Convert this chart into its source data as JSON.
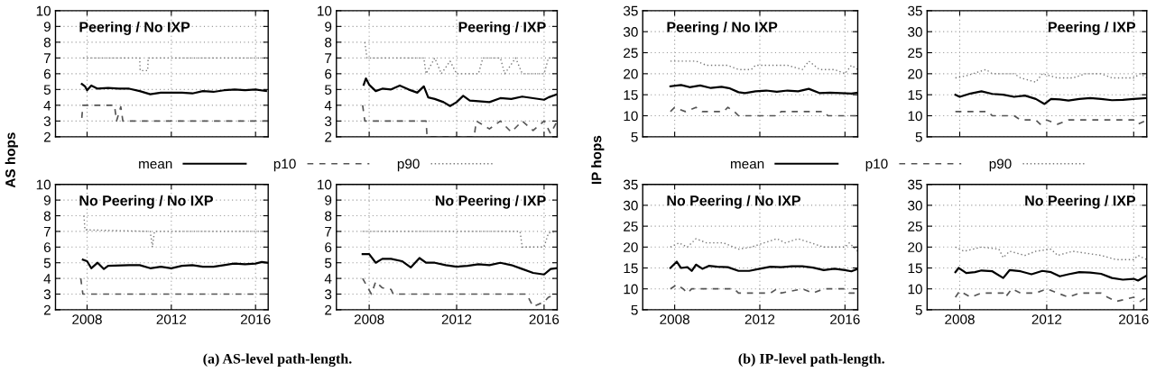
{
  "chart_data": [
    {
      "type": "line",
      "title": "Peering / No IXP",
      "ylabel": "AS hops",
      "legend": "bottom",
      "grid": true,
      "tick_labels": "y",
      "xlim": [
        2006.5,
        2016.6
      ],
      "xticks": [
        2008,
        2012,
        2016
      ],
      "ylim": [
        2,
        10
      ],
      "yticks": [
        2,
        3,
        4,
        5,
        6,
        7,
        8,
        9,
        10
      ],
      "series": [
        {
          "name": "mean",
          "color": "#000000",
          "line_style": "solid",
          "x": [
            2007.75,
            2007.9,
            2008.0,
            2008.2,
            2008.5,
            2009,
            2009.5,
            2010,
            2010.5,
            2011,
            2011.5,
            2012,
            2012.5,
            2013,
            2013.5,
            2014,
            2014.5,
            2015,
            2015.5,
            2016,
            2016.5
          ],
          "values": [
            5.35,
            5.2,
            4.95,
            5.25,
            5.05,
            5.1,
            5.05,
            5.05,
            4.9,
            4.7,
            4.8,
            4.8,
            4.8,
            4.75,
            4.9,
            4.85,
            4.95,
            5.0,
            4.95,
            5.0,
            4.9
          ]
        },
        {
          "name": "p10",
          "color": "#555555",
          "line_style": "dashed",
          "x": [
            2007.75,
            2007.8,
            2009.3,
            2009.4,
            2009.6,
            2009.7,
            2016.6
          ],
          "values": [
            3.2,
            4,
            4,
            3,
            3.9,
            3,
            3
          ]
        },
        {
          "name": "p90",
          "color": "#777777",
          "line_style": "dotted",
          "x": [
            2007.8,
            2010.5,
            2010.52,
            2010.88,
            2010.9,
            2016.6
          ],
          "values": [
            7,
            7,
            6.2,
            6.2,
            7,
            7
          ]
        }
      ]
    },
    {
      "type": "line",
      "title": "Peering / IXP",
      "grid": true,
      "tick_labels": "y",
      "xlim": [
        2006.5,
        2016.6
      ],
      "xticks": [
        2008,
        2012,
        2016
      ],
      "ylim": [
        2,
        10
      ],
      "yticks": [
        2,
        3,
        4,
        5,
        6,
        7,
        8,
        9,
        10
      ],
      "series": [
        {
          "color": "#000000",
          "line_style": "solid",
          "x": [
            2007.75,
            2007.85,
            2008,
            2008.3,
            2008.6,
            2009,
            2009.4,
            2009.8,
            2010.2,
            2010.5,
            2010.7,
            2011,
            2011.4,
            2011.7,
            2012,
            2012.3,
            2012.6,
            2013,
            2013.5,
            2014,
            2014.5,
            2015,
            2015.5,
            2016,
            2016.2,
            2016.6
          ],
          "values": [
            5.3,
            5.7,
            5.3,
            4.9,
            5.05,
            5.0,
            5.25,
            5.0,
            4.8,
            5.2,
            4.5,
            4.4,
            4.2,
            3.95,
            4.2,
            4.6,
            4.3,
            4.25,
            4.2,
            4.45,
            4.4,
            4.55,
            4.45,
            4.35,
            4.5,
            4.7
          ]
        },
        {
          "color": "#555555",
          "line_style": "dashed",
          "x": [
            2007.7,
            2007.8,
            2010.6,
            2010.65,
            2012.8,
            2012.9,
            2013.5,
            2014,
            2014.5,
            2015,
            2015.5,
            2016,
            2016.3,
            2016.6
          ],
          "values": [
            4,
            3,
            3,
            2,
            2,
            3,
            2.5,
            3,
            2.3,
            3,
            2.4,
            3,
            2.2,
            3
          ]
        },
        {
          "color": "#777777",
          "line_style": "dotted",
          "x": [
            2007.8,
            2007.9,
            2010.5,
            2010.6,
            2011,
            2011.3,
            2011.7,
            2012,
            2013,
            2013.2,
            2014,
            2014.2,
            2014.7,
            2015,
            2016,
            2016.2,
            2016.6
          ],
          "values": [
            8,
            7,
            7,
            6,
            7,
            6,
            6.8,
            6,
            6,
            7,
            7,
            6,
            7,
            6,
            6,
            7,
            7
          ]
        }
      ]
    },
    {
      "type": "line",
      "title": "No Peering / No IXP",
      "grid": true,
      "annotations": [
        "(a) AS-level path-length."
      ],
      "xlim": [
        2006.5,
        2016.6
      ],
      "xticks": [
        2008,
        2012,
        2016
      ],
      "ylim": [
        2,
        10
      ],
      "yticks": [
        2,
        3,
        4,
        5,
        6,
        7,
        8,
        9,
        10
      ],
      "series": [
        {
          "color": "#000000",
          "line_style": "solid",
          "x": [
            2007.8,
            2008,
            2008.2,
            2008.5,
            2008.8,
            2009,
            2010,
            2010.5,
            2011,
            2011.5,
            2012,
            2012.5,
            2013,
            2013.5,
            2014,
            2014.5,
            2015,
            2015.5,
            2016,
            2016.3,
            2016.6
          ],
          "values": [
            5.2,
            5.1,
            4.65,
            5.0,
            4.6,
            4.8,
            4.85,
            4.85,
            4.65,
            4.75,
            4.65,
            4.8,
            4.85,
            4.75,
            4.75,
            4.85,
            4.95,
            4.9,
            4.95,
            5.05,
            5.0
          ]
        },
        {
          "color": "#555555",
          "line_style": "dashed",
          "x": [
            2007.7,
            2007.8,
            2016.6
          ],
          "values": [
            4,
            3,
            3
          ]
        },
        {
          "color": "#777777",
          "line_style": "dotted",
          "x": [
            2007.85,
            2007.9,
            2011,
            2011.1,
            2011.2,
            2016.6
          ],
          "values": [
            8,
            7.1,
            7,
            6,
            7,
            7
          ]
        }
      ]
    },
    {
      "type": "line",
      "title": "No Peering / IXP",
      "grid": true,
      "xlim": [
        2006.5,
        2016.6
      ],
      "xticks": [
        2008,
        2012,
        2016
      ],
      "ylim": [
        2,
        10
      ],
      "yticks": [
        2,
        3,
        4,
        5,
        6,
        7,
        8,
        9,
        10
      ],
      "series": [
        {
          "color": "#000000",
          "line_style": "solid",
          "x": [
            2007.7,
            2008,
            2008.3,
            2008.6,
            2009,
            2009.5,
            2009.9,
            2010.3,
            2010.6,
            2011,
            2011.5,
            2012,
            2012.5,
            2013,
            2013.5,
            2014,
            2014.5,
            2015,
            2015.5,
            2016,
            2016.3,
            2016.6
          ],
          "values": [
            5.55,
            5.55,
            5.0,
            5.25,
            5.25,
            5.1,
            4.7,
            5.3,
            5.0,
            5.0,
            4.85,
            4.75,
            4.8,
            4.9,
            4.85,
            5.0,
            4.85,
            4.6,
            4.35,
            4.25,
            4.6,
            4.65
          ]
        },
        {
          "color": "#555555",
          "line_style": "dashed",
          "x": [
            2007.7,
            2008.1,
            2008.3,
            2008.6,
            2009,
            2009.1,
            2015.2,
            2015.5,
            2016,
            2016.2,
            2016.6
          ],
          "values": [
            4,
            3,
            3.8,
            3.4,
            3.3,
            3,
            3,
            2.2,
            2.5,
            2.8,
            3
          ]
        },
        {
          "color": "#777777",
          "line_style": "dotted",
          "x": [
            2007.7,
            2014.9,
            2015,
            2016,
            2016.2,
            2016.6
          ],
          "values": [
            7,
            7,
            6,
            6,
            6.9,
            7
          ]
        }
      ]
    },
    {
      "type": "line",
      "title": "Peering / No IXP",
      "ylabel": "IP hops",
      "legend": "bottom",
      "grid": true,
      "tick_labels": "y",
      "xlim": [
        2006.5,
        2016.6
      ],
      "xticks": [
        2008,
        2012,
        2016
      ],
      "ylim": [
        5,
        35
      ],
      "yticks": [
        5,
        10,
        15,
        20,
        25,
        30,
        35
      ],
      "series": [
        {
          "name": "mean",
          "color": "#000000",
          "line_style": "solid",
          "x": [
            2007.8,
            2008.3,
            2008.7,
            2009.2,
            2009.7,
            2010.2,
            2010.6,
            2011,
            2011.3,
            2011.8,
            2012.3,
            2012.8,
            2013.3,
            2013.8,
            2014.3,
            2014.8,
            2015.3,
            2015.8,
            2016.3,
            2016.6
          ],
          "values": [
            17,
            17.3,
            16.8,
            17.2,
            16.6,
            16.9,
            16.5,
            15.6,
            15.4,
            15.8,
            16.0,
            15.7,
            16.0,
            15.8,
            16.4,
            15.4,
            15.5,
            15.4,
            15.3,
            15.5
          ]
        },
        {
          "name": "p10",
          "color": "#555555",
          "line_style": "dashed",
          "x": [
            2007.8,
            2008,
            2008.5,
            2009,
            2009.3,
            2010.3,
            2010.5,
            2010.8,
            2011,
            2012.8,
            2013,
            2015,
            2015.2,
            2016.6
          ],
          "values": [
            11,
            12,
            11,
            12,
            11,
            11,
            12,
            11,
            10,
            10,
            11,
            11,
            10,
            10
          ]
        },
        {
          "name": "p90",
          "color": "#777777",
          "line_style": "dotted",
          "x": [
            2007.8,
            2009,
            2009.5,
            2010.5,
            2011,
            2011.6,
            2011.8,
            2012.8,
            2013.3,
            2014,
            2014.3,
            2014.8,
            2015.5,
            2016,
            2016.3,
            2016.6
          ],
          "values": [
            23,
            23,
            22,
            22,
            21,
            21,
            22,
            22,
            22,
            21,
            23,
            21,
            21,
            20,
            22,
            21
          ]
        }
      ]
    },
    {
      "type": "line",
      "title": "Peering / IXP",
      "grid": true,
      "tick_labels": "y",
      "xlim": [
        2006.5,
        2016.6
      ],
      "xticks": [
        2008,
        2012,
        2016
      ],
      "ylim": [
        5,
        35
      ],
      "yticks": [
        5,
        10,
        15,
        20,
        25,
        30,
        35
      ],
      "series": [
        {
          "color": "#000000",
          "line_style": "solid",
          "x": [
            2007.8,
            2008,
            2008.5,
            2009,
            2009.5,
            2010,
            2010.5,
            2011,
            2011.5,
            2011.9,
            2012.2,
            2012.6,
            2013,
            2013.5,
            2014,
            2014.5,
            2015,
            2015.5,
            2016,
            2016.6
          ],
          "values": [
            15,
            14.5,
            15.3,
            15.8,
            15.2,
            15.0,
            14.5,
            14.8,
            14.0,
            12.8,
            14.0,
            13.9,
            13.6,
            14.0,
            14.2,
            14.0,
            13.7,
            13.8,
            14.0,
            14.2
          ]
        },
        {
          "color": "#555555",
          "line_style": "dashed",
          "x": [
            2007.8,
            2009.3,
            2009.5,
            2010.5,
            2010.8,
            2011.5,
            2011.7,
            2012,
            2012.5,
            2013,
            2016,
            2016.2,
            2016.6
          ],
          "values": [
            11,
            11,
            10,
            10,
            9,
            9,
            8,
            9,
            8,
            9,
            9,
            8,
            9
          ]
        },
        {
          "color": "#777777",
          "line_style": "dotted",
          "x": [
            2007.8,
            2008.3,
            2009.2,
            2009.5,
            2010.5,
            2010.8,
            2011.5,
            2011.8,
            2012.5,
            2013.2,
            2013.8,
            2014.5,
            2015,
            2016,
            2016.3,
            2016.6
          ],
          "values": [
            19,
            19.5,
            21,
            20,
            20,
            19,
            18,
            20,
            19,
            19,
            20,
            20,
            19,
            19,
            20,
            19
          ]
        }
      ]
    },
    {
      "type": "line",
      "title": "No Peering / No IXP",
      "grid": true,
      "annotations": [
        "(b) IP-level path-length."
      ],
      "xlim": [
        2006.5,
        2016.6
      ],
      "xticks": [
        2008,
        2012,
        2016
      ],
      "ylim": [
        5,
        35
      ],
      "yticks": [
        5,
        10,
        15,
        20,
        25,
        30,
        35
      ],
      "series": [
        {
          "color": "#000000",
          "line_style": "solid",
          "x": [
            2007.8,
            2008.1,
            2008.3,
            2008.6,
            2008.8,
            2009,
            2009.3,
            2009.6,
            2010,
            2010.5,
            2011,
            2011.5,
            2012,
            2012.5,
            2013,
            2013.5,
            2014,
            2014.5,
            2015,
            2015.5,
            2016,
            2016.3,
            2016.6
          ],
          "values": [
            15,
            16.5,
            15,
            15.2,
            14.3,
            15.8,
            14.8,
            15.5,
            15.3,
            15.2,
            14.3,
            14.3,
            14.8,
            15.3,
            15.2,
            15.4,
            15.4,
            15.1,
            14.5,
            14.8,
            14.5,
            14.2,
            14.8
          ]
        },
        {
          "color": "#555555",
          "line_style": "dashed",
          "x": [
            2007.8,
            2008.1,
            2008.4,
            2008.6,
            2008.8,
            2010.8,
            2011,
            2012.5,
            2012.8,
            2013,
            2014,
            2014.5,
            2015,
            2016,
            2016.2,
            2016.6
          ],
          "values": [
            10,
            11,
            10,
            9,
            10,
            10,
            9,
            9,
            10,
            9,
            10,
            9,
            10,
            10,
            9,
            9
          ]
        },
        {
          "color": "#777777",
          "line_style": "dotted",
          "x": [
            2007.8,
            2008.2,
            2008.6,
            2009,
            2009.5,
            2010.3,
            2011,
            2011.6,
            2012.2,
            2012.8,
            2013.2,
            2013.8,
            2014.4,
            2015,
            2016,
            2016.2,
            2016.6
          ],
          "values": [
            20,
            21,
            20,
            22,
            21,
            21,
            19.5,
            20,
            21,
            22,
            21,
            22,
            21,
            20,
            20,
            21,
            19
          ]
        }
      ]
    },
    {
      "type": "line",
      "title": "No Peering / IXP",
      "grid": true,
      "xlim": [
        2006.5,
        2016.6
      ],
      "xticks": [
        2008,
        2012,
        2016
      ],
      "ylim": [
        5,
        35
      ],
      "yticks": [
        5,
        10,
        15,
        20,
        25,
        30,
        35
      ],
      "series": [
        {
          "color": "#000000",
          "line_style": "solid",
          "x": [
            2007.8,
            2007.95,
            2008.1,
            2008.3,
            2008.7,
            2009,
            2009.5,
            2010,
            2010.3,
            2010.8,
            2011.3,
            2011.8,
            2012.2,
            2012.6,
            2013,
            2013.5,
            2014,
            2014.5,
            2015,
            2015.5,
            2016,
            2016.2,
            2016.6
          ],
          "values": [
            14,
            15,
            14.5,
            13.8,
            14.0,
            14.4,
            14.2,
            12.6,
            14.5,
            14.2,
            13.5,
            14.3,
            14.0,
            13.0,
            13.5,
            14.0,
            13.9,
            13.6,
            12.6,
            12.2,
            12.4,
            12.0,
            13.2
          ]
        },
        {
          "color": "#555555",
          "line_style": "dashed",
          "x": [
            2007.8,
            2008,
            2008.5,
            2009,
            2010,
            2010.1,
            2010.4,
            2010.8,
            2011.5,
            2012,
            2012.5,
            2013,
            2013.5,
            2014.5,
            2014.8,
            2015.2,
            2016,
            2016.3,
            2016.6
          ],
          "values": [
            8,
            9.5,
            8,
            9,
            9,
            8,
            10,
            9,
            9,
            10,
            9,
            8,
            9,
            9,
            8,
            7,
            8,
            7,
            8
          ]
        },
        {
          "color": "#777777",
          "line_style": "dotted",
          "x": [
            2007.8,
            2008.2,
            2009,
            2009.8,
            2010,
            2010.3,
            2011,
            2011.5,
            2012.2,
            2012.5,
            2013.2,
            2014.5,
            2015.2,
            2016,
            2016.2,
            2016.6
          ],
          "values": [
            20,
            19,
            20,
            19.5,
            17.5,
            19,
            18,
            19,
            19.5,
            18,
            19,
            18,
            17,
            17,
            18,
            17
          ]
        }
      ]
    }
  ]
}
